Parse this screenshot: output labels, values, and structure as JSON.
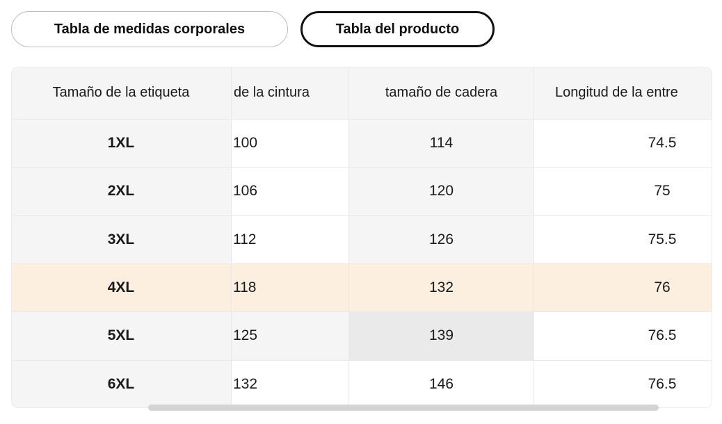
{
  "tabs": [
    {
      "label": "Tabla de medidas corporales",
      "selected": false
    },
    {
      "label": "Tabla del producto",
      "selected": true
    }
  ],
  "size_table": {
    "headers": [
      {
        "label": "Tamaño de la etiqueta"
      },
      {
        "label": "de la cintura"
      },
      {
        "label": "tamaño de cadera"
      },
      {
        "label": "Longitud de la entre"
      }
    ],
    "rows": [
      {
        "cells": [
          {
            "text": "1XL",
            "bg": "gray"
          },
          {
            "text": "100",
            "bg": "white"
          },
          {
            "text": "114",
            "bg": "gray"
          },
          {
            "text": "74.5",
            "bg": "white"
          }
        ]
      },
      {
        "cells": [
          {
            "text": "2XL",
            "bg": "gray"
          },
          {
            "text": "106",
            "bg": "white"
          },
          {
            "text": "120",
            "bg": "gray"
          },
          {
            "text": "75",
            "bg": "white"
          }
        ]
      },
      {
        "cells": [
          {
            "text": "3XL",
            "bg": "gray"
          },
          {
            "text": "112",
            "bg": "white"
          },
          {
            "text": "126",
            "bg": "gray"
          },
          {
            "text": "75.5",
            "bg": "white"
          }
        ]
      },
      {
        "cells": [
          {
            "text": "4XL",
            "bg": "peach"
          },
          {
            "text": "118",
            "bg": "peach"
          },
          {
            "text": "132",
            "bg": "peach"
          },
          {
            "text": "76",
            "bg": "peach"
          }
        ]
      },
      {
        "cells": [
          {
            "text": "5XL",
            "bg": "gray"
          },
          {
            "text": "125",
            "bg": "gray"
          },
          {
            "text": "139",
            "bg": "hover"
          },
          {
            "text": "76.5",
            "bg": "white"
          }
        ]
      },
      {
        "cells": [
          {
            "text": "6XL",
            "bg": "gray"
          },
          {
            "text": "132",
            "bg": "white"
          },
          {
            "text": "146",
            "bg": "white"
          },
          {
            "text": "76.5",
            "bg": "white"
          }
        ]
      }
    ],
    "selected_row": "4XL",
    "hovered_cell": {
      "row": "5XL",
      "column": "tamaño de cadera",
      "value": "139"
    }
  },
  "colors": {
    "header_bg": "#f5f5f6",
    "label_col_bg": "#f5f5f6",
    "selected_row_bg": "#fcefe0",
    "hover_cell_bg": "#eaeaeb",
    "divider": "#e9e9e9",
    "scrollbar_thumb": "#d4d4d4",
    "tab_active_border": "#111111",
    "tab_inactive_border": "#bdbdbd",
    "text": "#1a1a1a"
  }
}
